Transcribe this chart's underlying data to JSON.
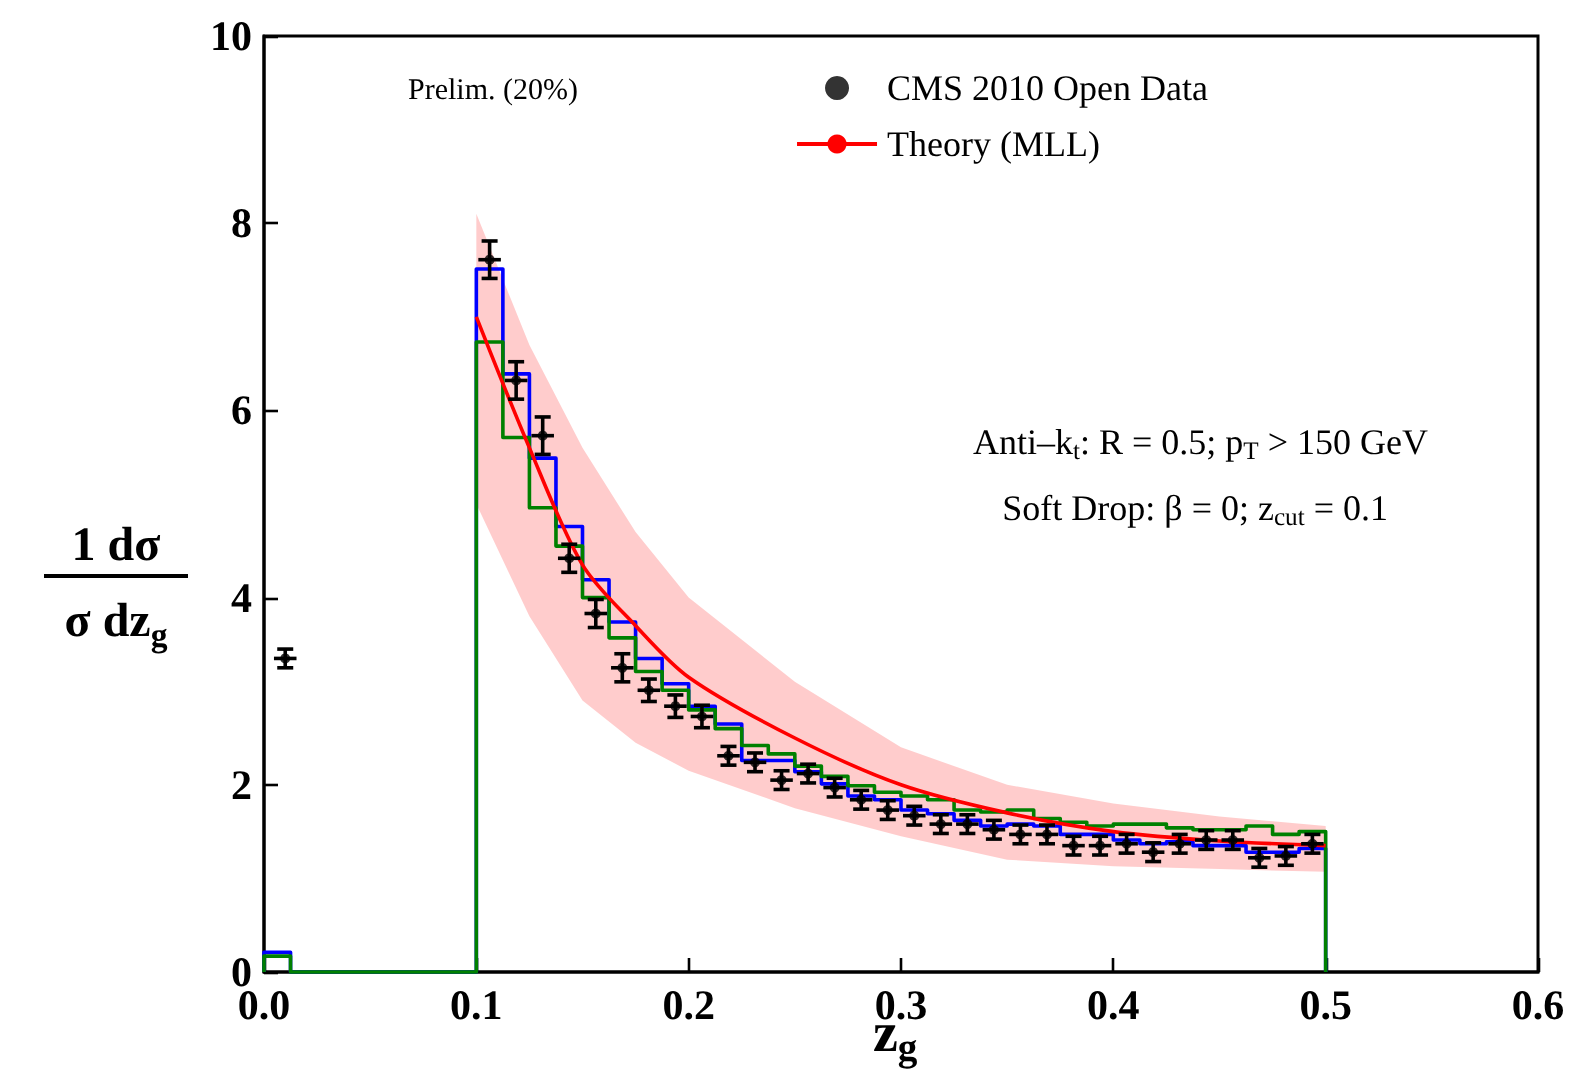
{
  "chart_data": {
    "type": "histogram",
    "xlabel": "z$_{g}$",
    "ylabel": "1 dσ\nσ dz$_{g}$",
    "annotations": [
      "Prelim. (20%)",
      "Anti–k$_{t}$: R = 0.5; p$_{T}$ > 150 GeV",
      "Soft Drop: β = 0; z$_{cut}$ = 0.1"
    ],
    "xlim": [
      0,
      0.6
    ],
    "ylim": [
      0,
      10
    ],
    "xticks": [
      {
        "value": 0,
        "label": "0.0"
      },
      {
        "value": 0.1,
        "label": "0.1"
      },
      {
        "value": 0.2,
        "label": "0.2"
      },
      {
        "value": 0.3,
        "label": "0.3"
      },
      {
        "value": 0.4,
        "label": "0.4"
      },
      {
        "value": 0.5,
        "label": "0.5"
      },
      {
        "value": 0.6,
        "label": "0.6"
      }
    ],
    "yticks": [
      0,
      2,
      4,
      6,
      8,
      10
    ],
    "legend": "top right",
    "bins": [
      0,
      0.0125,
      0.1,
      0.1125,
      0.125,
      0.1375,
      0.15,
      0.1625,
      0.175,
      0.1875,
      0.2,
      0.2125,
      0.225,
      0.2375,
      0.25,
      0.2625,
      0.275,
      0.2875,
      0.3,
      0.3125,
      0.325,
      0.3375,
      0.35,
      0.3625,
      0.375,
      0.3875,
      0.4,
      0.4125,
      0.425,
      0.4375,
      0.45,
      0.4625,
      0.475,
      0.4875,
      0.5
    ],
    "series": [
      {
        "type": "line",
        "name": "Theory (MLL)",
        "color": "#ff0000",
        "x": [
          0.1,
          0.125,
          0.15,
          0.175,
          0.2,
          0.25,
          0.3,
          0.35,
          0.4,
          0.45,
          0.5
        ],
        "values": [
          7.0,
          5.6,
          4.35,
          3.7,
          3.15,
          2.5,
          2.0,
          1.7,
          1.5,
          1.4,
          1.35
        ],
        "lower": [
          5.0,
          3.8,
          2.9,
          2.45,
          2.15,
          1.75,
          1.45,
          1.2,
          1.13,
          1.1,
          1.07
        ],
        "upper": [
          8.1,
          6.7,
          5.6,
          4.7,
          4.0,
          3.1,
          2.4,
          2.0,
          1.8,
          1.66,
          1.56
        ]
      },
      {
        "type": "histogram",
        "color": "#0000ff",
        "values": [
          0.21,
          0,
          7.51,
          6.39,
          5.49,
          4.76,
          4.19,
          3.74,
          3.35,
          3.08,
          2.84,
          2.65,
          2.26,
          2.26,
          2.14,
          2.01,
          1.88,
          1.84,
          1.73,
          1.69,
          1.62,
          1.56,
          1.58,
          1.56,
          1.47,
          1.47,
          1.41,
          1.37,
          1.39,
          1.35,
          1.35,
          1.28,
          1.28,
          1.32
        ]
      },
      {
        "type": "histogram",
        "color": "#008000",
        "values": [
          0.17,
          0,
          6.73,
          5.71,
          4.96,
          4.55,
          4.0,
          3.57,
          3.21,
          3.01,
          2.8,
          2.6,
          2.42,
          2.33,
          2.2,
          2.09,
          1.99,
          1.92,
          1.88,
          1.84,
          1.73,
          1.71,
          1.73,
          1.64,
          1.6,
          1.56,
          1.58,
          1.58,
          1.54,
          1.52,
          1.52,
          1.56,
          1.47,
          1.5
        ]
      },
      {
        "type": "scatter",
        "name": "CMS 2010 Open Data",
        "color": "#000000",
        "marker": "circle",
        "x": [
          0.01,
          0.10625,
          0.11875,
          0.13125,
          0.14375,
          0.15625,
          0.16875,
          0.18125,
          0.19375,
          0.20625,
          0.21875,
          0.23125,
          0.24375,
          0.25625,
          0.26875,
          0.28125,
          0.29375,
          0.30625,
          0.31875,
          0.33125,
          0.34375,
          0.35625,
          0.36875,
          0.38125,
          0.39375,
          0.40625,
          0.41875,
          0.43125,
          0.44375,
          0.45625,
          0.46875,
          0.48125,
          0.49375
        ],
        "values": [
          3.35,
          7.61,
          6.32,
          5.73,
          4.42,
          3.83,
          3.25,
          3.01,
          2.84,
          2.73,
          2.31,
          2.24,
          2.05,
          2.12,
          1.97,
          1.84,
          1.73,
          1.67,
          1.58,
          1.58,
          1.52,
          1.47,
          1.47,
          1.35,
          1.35,
          1.37,
          1.28,
          1.37,
          1.41,
          1.41,
          1.22,
          1.24,
          1.37
        ],
        "errors": [
          0.1,
          0.2,
          0.2,
          0.2,
          0.15,
          0.15,
          0.15,
          0.12,
          0.12,
          0.12,
          0.1,
          0.1,
          0.1,
          0.1,
          0.1,
          0.1,
          0.1,
          0.1,
          0.1,
          0.1,
          0.1,
          0.1,
          0.1,
          0.1,
          0.1,
          0.1,
          0.1,
          0.1,
          0.1,
          0.1,
          0.1,
          0.1,
          0.1
        ],
        "xerrors": [
          0.00625,
          0.00625,
          0.00625,
          0.00625,
          0.00625,
          0.00625,
          0.00625,
          0.00625,
          0.00625,
          0.00625,
          0.00625,
          0.00625,
          0.00625,
          0.00625,
          0.00625,
          0.00625,
          0.00625,
          0.00625,
          0.00625,
          0.00625,
          0.00625,
          0.00625,
          0.00625,
          0.00625,
          0.00625,
          0.00625,
          0.00625,
          0.00625,
          0.00625,
          0.00625,
          0.00625,
          0.00625,
          0.00625
        ]
      }
    ]
  }
}
